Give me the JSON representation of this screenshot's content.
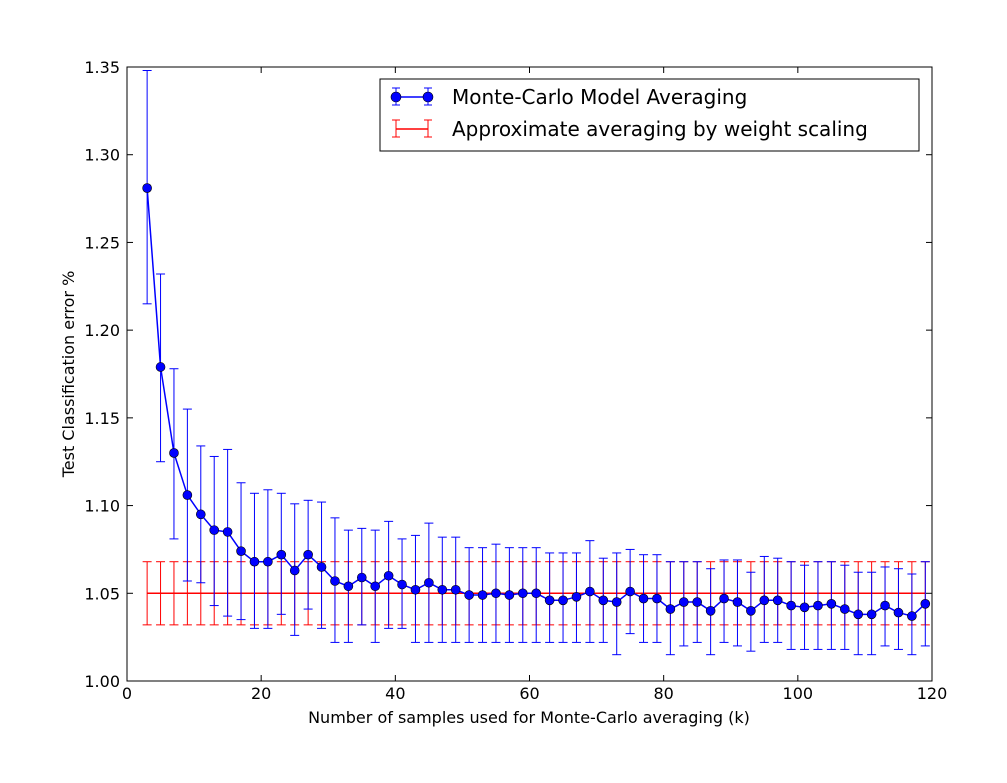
{
  "chart_data": {
    "type": "line",
    "title": "",
    "xlabel": "Number of samples used for Monte-Carlo averaging (k)",
    "ylabel": "Test Classification error %",
    "xlim": [
      0,
      120
    ],
    "ylim": [
      1.0,
      1.35
    ],
    "xticks": [
      "0",
      "20",
      "40",
      "60",
      "80",
      "100",
      "120"
    ],
    "yticks": [
      "1.00",
      "1.05",
      "1.10",
      "1.15",
      "1.20",
      "1.25",
      "1.30",
      "1.35"
    ],
    "grid": false,
    "legend_position": "top-right",
    "x": [
      3,
      5,
      7,
      9,
      11,
      13,
      15,
      17,
      19,
      21,
      23,
      25,
      27,
      29,
      31,
      33,
      35,
      37,
      39,
      41,
      43,
      45,
      47,
      49,
      51,
      53,
      55,
      57,
      59,
      61,
      63,
      65,
      67,
      69,
      71,
      73,
      75,
      77,
      79,
      81,
      83,
      85,
      87,
      89,
      91,
      93,
      95,
      97,
      99,
      101,
      103,
      105,
      107,
      109,
      111,
      113,
      115,
      117,
      119
    ],
    "series": [
      {
        "name": "Monte-Carlo Model Averaging",
        "color": "#0000ff",
        "marker": "circle",
        "values": [
          1.281,
          1.179,
          1.13,
          1.106,
          1.095,
          1.086,
          1.085,
          1.074,
          1.068,
          1.068,
          1.072,
          1.063,
          1.072,
          1.065,
          1.057,
          1.054,
          1.059,
          1.054,
          1.06,
          1.055,
          1.052,
          1.056,
          1.052,
          1.052,
          1.049,
          1.049,
          1.05,
          1.049,
          1.05,
          1.05,
          1.046,
          1.046,
          1.048,
          1.051,
          1.046,
          1.045,
          1.051,
          1.047,
          1.047,
          1.041,
          1.045,
          1.045,
          1.04,
          1.047,
          1.045,
          1.04,
          1.046,
          1.046,
          1.043,
          1.042,
          1.043,
          1.044,
          1.041,
          1.038,
          1.038,
          1.043,
          1.039,
          1.037,
          1.044
        ],
        "error_low": [
          1.215,
          1.125,
          1.081,
          1.057,
          1.056,
          1.043,
          1.037,
          1.035,
          1.03,
          1.03,
          1.038,
          1.026,
          1.041,
          1.03,
          1.022,
          1.022,
          1.032,
          1.022,
          1.03,
          1.03,
          1.022,
          1.022,
          1.022,
          1.022,
          1.022,
          1.022,
          1.022,
          1.022,
          1.022,
          1.022,
          1.022,
          1.022,
          1.022,
          1.022,
          1.022,
          1.015,
          1.027,
          1.022,
          1.022,
          1.015,
          1.02,
          1.022,
          1.015,
          1.022,
          1.02,
          1.017,
          1.022,
          1.022,
          1.018,
          1.018,
          1.018,
          1.018,
          1.018,
          1.015,
          1.015,
          1.02,
          1.018,
          1.015,
          1.02
        ],
        "error_high": [
          1.348,
          1.232,
          1.178,
          1.155,
          1.134,
          1.128,
          1.132,
          1.113,
          1.107,
          1.109,
          1.107,
          1.101,
          1.103,
          1.102,
          1.093,
          1.086,
          1.087,
          1.086,
          1.091,
          1.081,
          1.083,
          1.09,
          1.082,
          1.082,
          1.076,
          1.076,
          1.078,
          1.076,
          1.076,
          1.076,
          1.073,
          1.073,
          1.073,
          1.08,
          1.07,
          1.073,
          1.075,
          1.072,
          1.072,
          1.068,
          1.068,
          1.068,
          1.064,
          1.069,
          1.069,
          1.062,
          1.071,
          1.07,
          1.068,
          1.066,
          1.068,
          1.068,
          1.066,
          1.062,
          1.062,
          1.065,
          1.064,
          1.061,
          1.068
        ]
      },
      {
        "name": "Approximate averaging by weight scaling",
        "color": "#ff0000",
        "marker": "none",
        "constant_value": 1.05,
        "error_low_value": 1.032,
        "error_high_value": 1.068
      }
    ]
  }
}
